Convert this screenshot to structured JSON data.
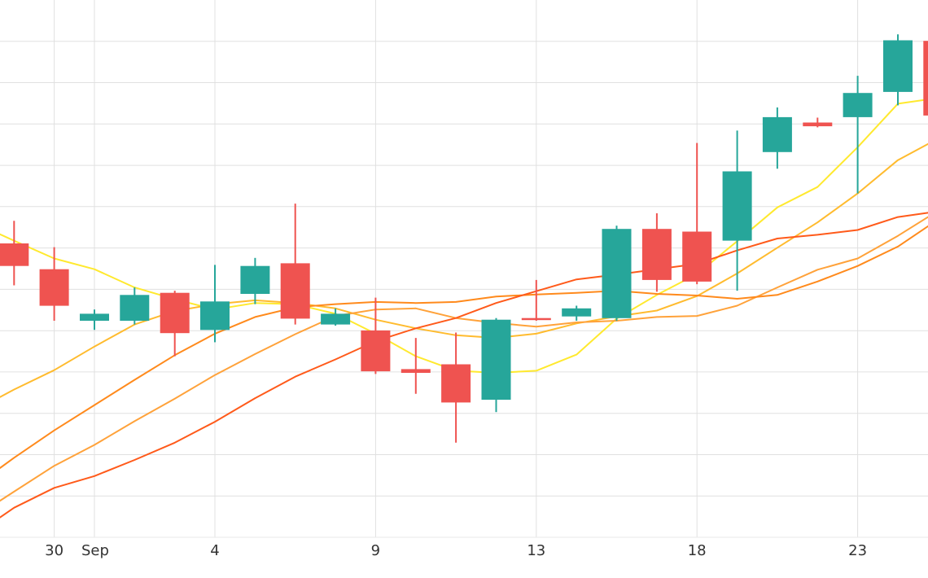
{
  "chart_data": {
    "type": "candlestick",
    "x_tick_labels": [
      {
        "day": 30,
        "label": "30"
      },
      {
        "day": 32,
        "label": "Sep"
      },
      {
        "day": 38,
        "label": "4"
      },
      {
        "day": 46,
        "label": "9"
      },
      {
        "day": 54,
        "label": "13"
      },
      {
        "day": 62,
        "label": "18"
      },
      {
        "day": 70,
        "label": "23"
      }
    ],
    "ylim": [
      0,
      100
    ],
    "xlim": [
      27.3,
      73.5
    ],
    "grid": true,
    "candles": [
      {
        "day": 28,
        "open": 54.7,
        "high": 58.9,
        "low": 46.9,
        "close": 50.5
      },
      {
        "day": 30,
        "open": 49.9,
        "high": 54.0,
        "low": 40.3,
        "close": 43.1
      },
      {
        "day": 32,
        "open": 40.3,
        "high": 42.4,
        "low": 38.6,
        "close": 41.6
      },
      {
        "day": 34,
        "open": 40.3,
        "high": 46.5,
        "low": 39.6,
        "close": 45.1
      },
      {
        "day": 36,
        "open": 45.5,
        "high": 45.9,
        "low": 33.7,
        "close": 38.0
      },
      {
        "day": 38,
        "open": 38.6,
        "high": 50.7,
        "low": 36.3,
        "close": 43.9
      },
      {
        "day": 40,
        "open": 45.3,
        "high": 52.0,
        "low": 43.4,
        "close": 50.5
      },
      {
        "day": 42,
        "open": 51.0,
        "high": 62.1,
        "low": 39.6,
        "close": 40.7
      },
      {
        "day": 44,
        "open": 39.6,
        "high": 42.6,
        "low": 39.4,
        "close": 41.6
      },
      {
        "day": 46,
        "open": 38.5,
        "high": 44.6,
        "low": 30.4,
        "close": 30.9
      },
      {
        "day": 48,
        "open": 31.3,
        "high": 37.1,
        "low": 26.7,
        "close": 30.6
      },
      {
        "day": 50,
        "open": 32.2,
        "high": 38.1,
        "low": 17.6,
        "close": 25.1
      },
      {
        "day": 52,
        "open": 25.6,
        "high": 40.8,
        "low": 23.3,
        "close": 40.5
      },
      {
        "day": 54,
        "open": 40.8,
        "high": 47.9,
        "low": 40.3,
        "close": 40.5
      },
      {
        "day": 56,
        "open": 41.1,
        "high": 43.1,
        "low": 40.3,
        "close": 42.6
      },
      {
        "day": 58,
        "open": 40.8,
        "high": 58.0,
        "low": 40.3,
        "close": 57.4
      },
      {
        "day": 60,
        "open": 57.4,
        "high": 60.3,
        "low": 45.7,
        "close": 47.9
      },
      {
        "day": 62,
        "open": 56.9,
        "high": 73.4,
        "low": 47.1,
        "close": 47.6
      },
      {
        "day": 64,
        "open": 55.2,
        "high": 75.7,
        "low": 45.9,
        "close": 68.1
      },
      {
        "day": 66,
        "open": 71.7,
        "high": 80.0,
        "low": 68.6,
        "close": 78.2
      },
      {
        "day": 68,
        "open": 77.2,
        "high": 78.1,
        "low": 76.3,
        "close": 76.5
      },
      {
        "day": 70,
        "open": 78.2,
        "high": 85.9,
        "low": 64.0,
        "close": 82.7
      },
      {
        "day": 72,
        "open": 82.9,
        "high": 93.6,
        "low": 80.4,
        "close": 92.5
      },
      {
        "day": 74,
        "open": 92.4,
        "high": 96.4,
        "low": 75.6,
        "close": 78.5
      }
    ],
    "series": [
      {
        "color": "#ffe92e",
        "points": [
          [
            27.3,
            56.4
          ],
          [
            28,
            55.2
          ],
          [
            30,
            51.9
          ],
          [
            32,
            49.9
          ],
          [
            34,
            46.5
          ],
          [
            36,
            44.3
          ],
          [
            38,
            42.4
          ],
          [
            40,
            43.6
          ],
          [
            42,
            43.4
          ],
          [
            44,
            41.6
          ],
          [
            46,
            37.9
          ],
          [
            48,
            33.7
          ],
          [
            50,
            31.0
          ],
          [
            52,
            30.6
          ],
          [
            54,
            31.0
          ],
          [
            56,
            34.0
          ],
          [
            58,
            40.7
          ],
          [
            60,
            45.1
          ],
          [
            62,
            49.0
          ],
          [
            64,
            55.1
          ],
          [
            66,
            61.4
          ],
          [
            68,
            65.2
          ],
          [
            70,
            72.6
          ],
          [
            72,
            80.7
          ],
          [
            73.5,
            81.5
          ]
        ]
      },
      {
        "color": "#ffbb2e",
        "points": [
          [
            27.3,
            26.1
          ],
          [
            28,
            27.5
          ],
          [
            30,
            31.1
          ],
          [
            32,
            35.5
          ],
          [
            34,
            39.6
          ],
          [
            36,
            42.1
          ],
          [
            38,
            43.4
          ],
          [
            40,
            44.1
          ],
          [
            42,
            43.6
          ],
          [
            44,
            42.6
          ],
          [
            46,
            40.5
          ],
          [
            48,
            38.9
          ],
          [
            50,
            37.6
          ],
          [
            52,
            37.1
          ],
          [
            54,
            37.9
          ],
          [
            56,
            39.8
          ],
          [
            58,
            41.1
          ],
          [
            60,
            42.2
          ],
          [
            62,
            44.9
          ],
          [
            64,
            49.1
          ],
          [
            66,
            53.9
          ],
          [
            68,
            58.6
          ],
          [
            70,
            64.0
          ],
          [
            72,
            70.2
          ],
          [
            73.5,
            73.2
          ]
        ]
      },
      {
        "color": "#ffa23a",
        "points": [
          [
            27.3,
            6.8
          ],
          [
            28,
            8.5
          ],
          [
            30,
            13.3
          ],
          [
            32,
            17.2
          ],
          [
            34,
            21.6
          ],
          [
            36,
            25.8
          ],
          [
            38,
            30.2
          ],
          [
            40,
            34.1
          ],
          [
            42,
            37.8
          ],
          [
            44,
            41.2
          ],
          [
            46,
            42.4
          ],
          [
            48,
            42.6
          ],
          [
            50,
            40.8
          ],
          [
            52,
            39.9
          ],
          [
            54,
            39.2
          ],
          [
            56,
            40.0
          ],
          [
            58,
            40.3
          ],
          [
            60,
            41.0
          ],
          [
            62,
            41.2
          ],
          [
            64,
            43.1
          ],
          [
            66,
            46.5
          ],
          [
            68,
            49.8
          ],
          [
            70,
            51.9
          ],
          [
            72,
            56.1
          ],
          [
            73.5,
            59.6
          ]
        ]
      },
      {
        "color": "#ff8a1c",
        "points": [
          [
            27.3,
            12.9
          ],
          [
            28,
            14.8
          ],
          [
            30,
            19.9
          ],
          [
            32,
            24.6
          ],
          [
            34,
            29.3
          ],
          [
            36,
            33.9
          ],
          [
            38,
            37.9
          ],
          [
            40,
            41.0
          ],
          [
            42,
            42.8
          ],
          [
            44,
            43.4
          ],
          [
            46,
            43.8
          ],
          [
            48,
            43.6
          ],
          [
            50,
            43.8
          ],
          [
            52,
            44.8
          ],
          [
            54,
            45.2
          ],
          [
            56,
            45.5
          ],
          [
            58,
            45.9
          ],
          [
            60,
            45.3
          ],
          [
            62,
            45.0
          ],
          [
            64,
            44.4
          ],
          [
            66,
            45.1
          ],
          [
            68,
            47.6
          ],
          [
            70,
            50.5
          ],
          [
            72,
            54.1
          ],
          [
            73.5,
            57.9
          ]
        ]
      },
      {
        "color": "#ff5a1a",
        "points": [
          [
            27.3,
            3.7
          ],
          [
            28,
            5.5
          ],
          [
            30,
            9.2
          ],
          [
            32,
            11.4
          ],
          [
            34,
            14.4
          ],
          [
            36,
            17.6
          ],
          [
            38,
            21.5
          ],
          [
            40,
            25.9
          ],
          [
            42,
            29.9
          ],
          [
            44,
            33.1
          ],
          [
            46,
            36.5
          ],
          [
            48,
            38.9
          ],
          [
            50,
            40.8
          ],
          [
            52,
            43.6
          ],
          [
            54,
            45.8
          ],
          [
            56,
            48.0
          ],
          [
            58,
            48.9
          ],
          [
            60,
            49.9
          ],
          [
            62,
            50.9
          ],
          [
            64,
            53.4
          ],
          [
            66,
            55.6
          ],
          [
            68,
            56.3
          ],
          [
            70,
            57.2
          ],
          [
            72,
            59.6
          ],
          [
            73.5,
            60.4
          ]
        ]
      }
    ],
    "colors": {
      "up": "#26a69a",
      "down": "#ef5350",
      "grid": "#e0e0e0",
      "axis_line": "#e8e8e8"
    }
  }
}
